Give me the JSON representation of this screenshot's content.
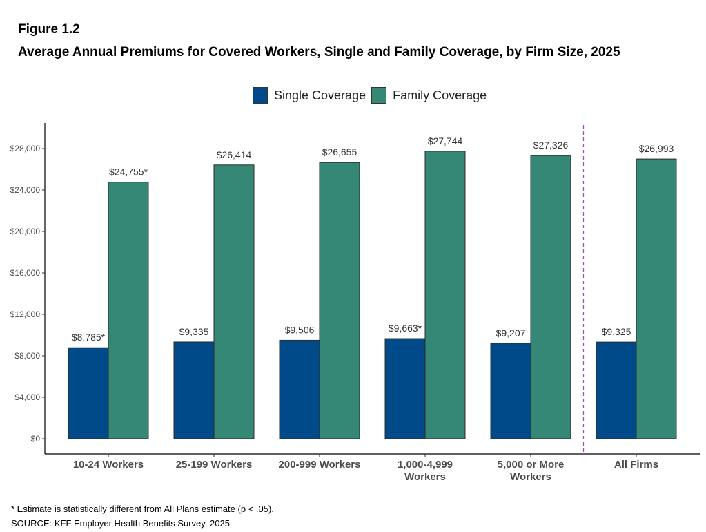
{
  "figure_label": "Figure 1.2",
  "title": "Average Annual Premiums for Covered Workers, Single and Family Coverage, by Firm Size, 2025",
  "footnote": "* Estimate is statistically different from All Plans estimate (p < .05).",
  "source": "SOURCE: KFF Employer Health Benefits Survey, 2025",
  "colors": {
    "single": "#004a8a",
    "family": "#358876",
    "divider": "#a64dbd"
  },
  "chart_data": {
    "type": "bar",
    "categories": [
      [
        "10-24 Workers"
      ],
      [
        "25-199 Workers"
      ],
      [
        "200-999 Workers"
      ],
      [
        "1,000-4,999",
        "Workers"
      ],
      [
        "5,000 or More",
        "Workers"
      ],
      [
        "All Firms"
      ]
    ],
    "series": [
      {
        "name": "Single Coverage",
        "values": [
          8785,
          9335,
          9506,
          9663,
          9207,
          9325
        ],
        "labels": [
          "$8,785*",
          "$9,335",
          "$9,506",
          "$9,663*",
          "$9,207",
          "$9,325"
        ]
      },
      {
        "name": "Family Coverage",
        "values": [
          24755,
          26414,
          26655,
          27744,
          27326,
          26993
        ],
        "labels": [
          "$24,755*",
          "$26,414",
          "$26,655",
          "$27,744",
          "$27,326",
          "$26,993"
        ]
      }
    ],
    "yticks": [
      "$0",
      "$4,000",
      "$8,000",
      "$12,000",
      "$16,000",
      "$20,000",
      "$24,000",
      "$28,000"
    ],
    "ytick_values": [
      0,
      4000,
      8000,
      12000,
      16000,
      20000,
      24000,
      28000
    ],
    "ylim": [
      0,
      30000
    ],
    "divider_after_category": 4,
    "legend_position": "top-center",
    "grid": false
  }
}
